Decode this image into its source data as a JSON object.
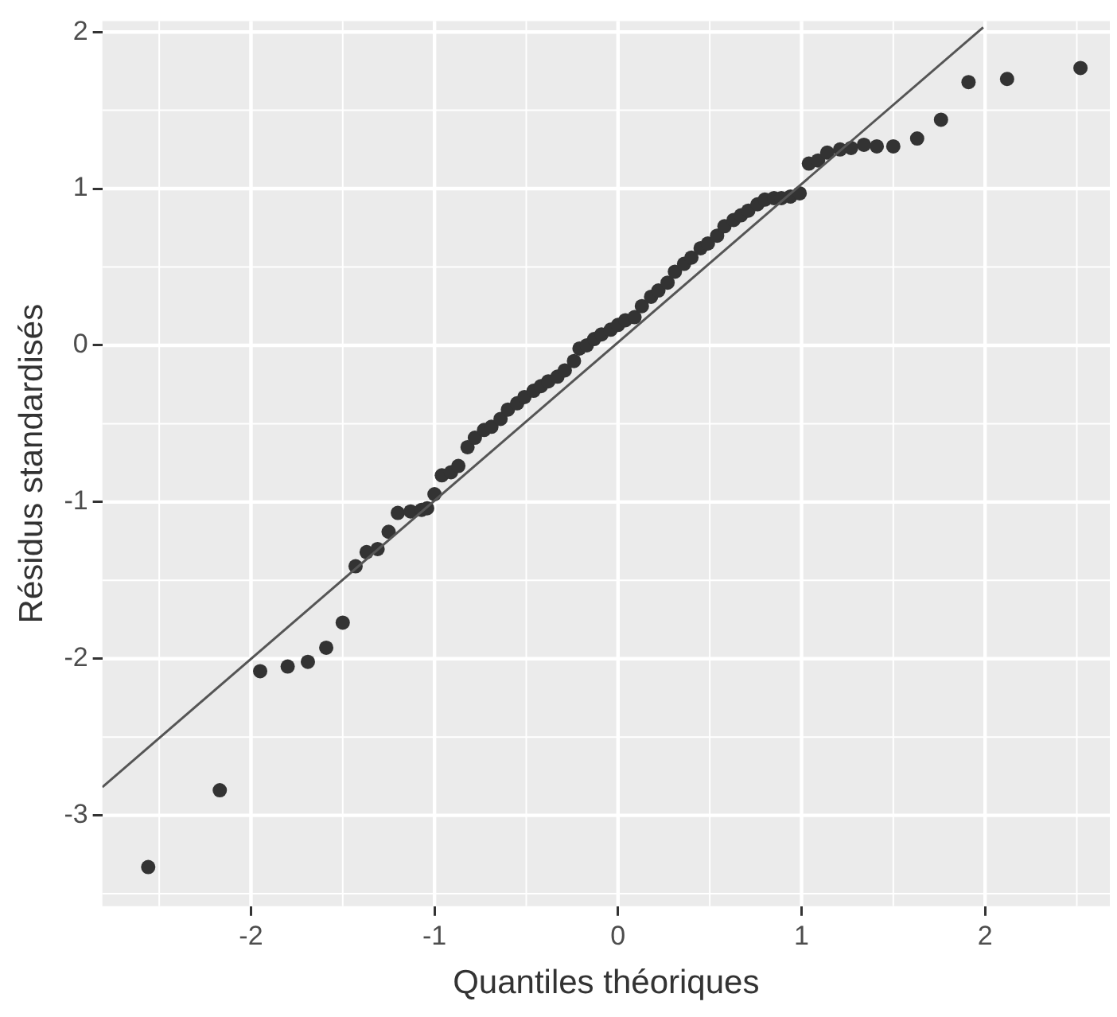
{
  "chart_data": {
    "type": "scatter",
    "xlabel": "Quantiles théoriques",
    "ylabel": "Résidus standardisés",
    "xlim": [
      -2.81,
      2.68
    ],
    "ylim": [
      -3.58,
      2.07
    ],
    "xticks": [
      -2,
      -1,
      0,
      1,
      2
    ],
    "yticks": [
      -3,
      -2,
      -1,
      0,
      1,
      2
    ],
    "grid": true,
    "marker": "circle",
    "legend": false,
    "series": [
      {
        "color": "#333333",
        "x": [
          -2.56,
          -2.17,
          -1.95,
          -1.8,
          -1.69,
          -1.59,
          -1.5,
          -1.43,
          -1.37,
          -1.31,
          -1.25,
          -1.2,
          -1.13,
          -1.07,
          -1.04,
          -1.0,
          -0.96,
          -0.91,
          -0.87,
          -0.82,
          -0.78,
          -0.73,
          -0.69,
          -0.64,
          -0.6,
          -0.55,
          -0.51,
          -0.46,
          -0.42,
          -0.38,
          -0.33,
          -0.29,
          -0.24,
          -0.21,
          -0.17,
          -0.13,
          -0.09,
          -0.04,
          0,
          0.04,
          0.09,
          0.13,
          0.18,
          0.22,
          0.27,
          0.31,
          0.36,
          0.4,
          0.45,
          0.49,
          0.54,
          0.58,
          0.63,
          0.67,
          0.71,
          0.76,
          0.8,
          0.85,
          0.89,
          0.94,
          0.99,
          1.04,
          1.09,
          1.14,
          1.21,
          1.27,
          1.34,
          1.41,
          1.5,
          1.63,
          1.76,
          1.91,
          2.12,
          2.52
        ],
        "values": [
          -3.33,
          -2.84,
          -2.08,
          -2.05,
          -2.02,
          -1.93,
          -1.77,
          -1.41,
          -1.32,
          -1.3,
          -1.19,
          -1.07,
          -1.06,
          -1.05,
          -1.04,
          -0.95,
          -0.83,
          -0.81,
          -0.77,
          -0.65,
          -0.59,
          -0.54,
          -0.52,
          -0.47,
          -0.41,
          -0.37,
          -0.33,
          -0.29,
          -0.26,
          -0.23,
          -0.2,
          -0.16,
          -0.1,
          -0.02,
          0.0,
          0.04,
          0.07,
          0.1,
          0.13,
          0.16,
          0.18,
          0.25,
          0.31,
          0.35,
          0.4,
          0.47,
          0.52,
          0.56,
          0.62,
          0.65,
          0.7,
          0.76,
          0.8,
          0.83,
          0.86,
          0.9,
          0.93,
          0.94,
          0.94,
          0.95,
          0.97,
          1.16,
          1.18,
          1.23,
          1.25,
          1.26,
          1.28,
          1.27,
          1.27,
          1.32,
          1.44,
          1.68,
          1.7,
          1.77
        ]
      },
      {
        "type": "line",
        "color": "#555555",
        "marker": "none",
        "x": [
          -2.81,
          1.99
        ],
        "values": [
          -2.82,
          2.03
        ]
      }
    ]
  }
}
